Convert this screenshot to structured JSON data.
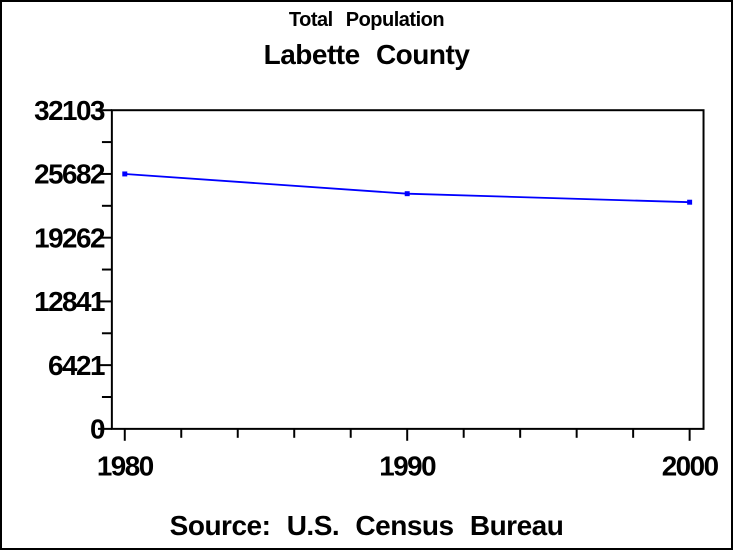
{
  "window": {
    "background": "#FFFFFF",
    "border_color": "#000000"
  },
  "chart_data": {
    "type": "line",
    "title": "Total Population",
    "subtitle": "Labette County",
    "source_note": "Source: U.S. Census Bureau",
    "x": [
      1980,
      1990,
      2000
    ],
    "series": [
      {
        "name": "Total Population",
        "values": [
          25682,
          23693,
          22835
        ]
      }
    ],
    "xlim": [
      1980,
      2000
    ],
    "ylim": [
      0,
      32103
    ],
    "y_ticks": [
      0,
      6421,
      12841,
      19262,
      25682,
      32103
    ],
    "y_tick_labels": [
      "0",
      "6421",
      "12841",
      "19262",
      "25682",
      "32103"
    ],
    "x_major_ticks": [
      1980,
      1990,
      2000
    ],
    "x_tick_labels": [
      "1980",
      "1990",
      "2000"
    ],
    "x_minor_tick_step": 2,
    "y_minor_ticks_between": 1,
    "xlabel": "",
    "ylabel": "",
    "grid": false,
    "legend": false,
    "line_color": "#0000FF",
    "marker": "square",
    "axis_color": "#000000",
    "text_color": "#000000"
  }
}
